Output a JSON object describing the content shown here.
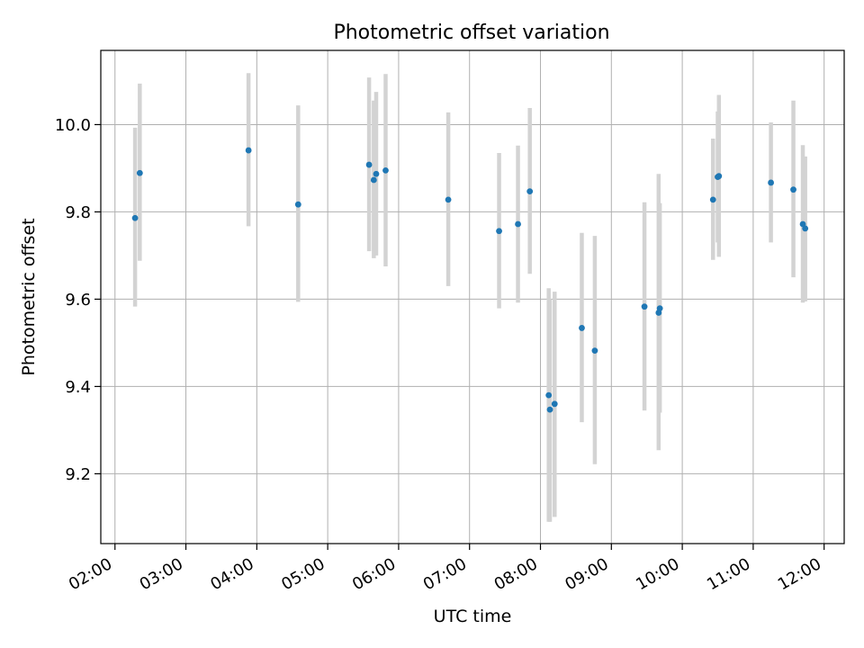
{
  "chart_data": {
    "type": "scatter",
    "title": "Photometric offset variation",
    "xlabel": "UTC time",
    "ylabel": "Photometric offset",
    "x_axis_type": "time",
    "xlim": [
      "01:48",
      "12:17"
    ],
    "ylim": [
      9.04,
      10.17
    ],
    "xticks": [
      "02:00",
      "03:00",
      "04:00",
      "05:00",
      "06:00",
      "07:00",
      "08:00",
      "09:00",
      "10:00",
      "11:00",
      "12:00"
    ],
    "yticks": [
      9.2,
      9.4,
      9.6,
      9.8,
      10.0
    ],
    "ytick_labels": [
      "9.2",
      "9.4",
      "9.6",
      "9.8",
      "10.0"
    ],
    "grid": true,
    "point_color": "#1f77b4",
    "errorbar_color": "#d3d3d3",
    "points": [
      {
        "x": "02:17",
        "y": 9.786,
        "yerr": [
          9.583,
          9.993
        ]
      },
      {
        "x": "02:21",
        "y": 9.889,
        "yerr": [
          9.688,
          10.094
        ]
      },
      {
        "x": "03:53",
        "y": 9.941,
        "yerr": [
          9.767,
          10.118
        ]
      },
      {
        "x": "04:35",
        "y": 9.817,
        "yerr": [
          9.594,
          10.044
        ]
      },
      {
        "x": "05:35",
        "y": 9.908,
        "yerr": [
          9.71,
          10.108
        ]
      },
      {
        "x": "05:39",
        "y": 9.873,
        "yerr": [
          9.694,
          10.055
        ]
      },
      {
        "x": "05:41",
        "y": 9.887,
        "yerr": [
          9.7,
          10.075
        ]
      },
      {
        "x": "05:49",
        "y": 9.895,
        "yerr": [
          9.675,
          10.116
        ]
      },
      {
        "x": "06:42",
        "y": 9.828,
        "yerr": [
          9.63,
          10.028
        ]
      },
      {
        "x": "07:25",
        "y": 9.756,
        "yerr": [
          9.579,
          9.935
        ]
      },
      {
        "x": "07:41",
        "y": 9.772,
        "yerr": [
          9.592,
          9.952
        ]
      },
      {
        "x": "07:51",
        "y": 9.847,
        "yerr": [
          9.658,
          10.038
        ]
      },
      {
        "x": "08:07",
        "y": 9.38,
        "yerr": [
          9.09,
          9.625
        ]
      },
      {
        "x": "08:08",
        "y": 9.347,
        "yerr": [
          9.09,
          9.6
        ]
      },
      {
        "x": "08:12",
        "y": 9.36,
        "yerr": [
          9.101,
          9.617
        ]
      },
      {
        "x": "08:35",
        "y": 9.534,
        "yerr": [
          9.318,
          9.752
        ]
      },
      {
        "x": "08:46",
        "y": 9.482,
        "yerr": [
          9.222,
          9.745
        ]
      },
      {
        "x": "09:28",
        "y": 9.583,
        "yerr": [
          9.345,
          9.822
        ]
      },
      {
        "x": "09:40",
        "y": 9.569,
        "yerr": [
          9.254,
          9.887
        ]
      },
      {
        "x": "09:41",
        "y": 9.579,
        "yerr": [
          9.34,
          9.82
        ]
      },
      {
        "x": "10:26",
        "y": 9.828,
        "yerr": [
          9.69,
          9.968
        ]
      },
      {
        "x": "10:30",
        "y": 9.88,
        "yerr": [
          9.73,
          10.03
        ]
      },
      {
        "x": "10:31",
        "y": 9.882,
        "yerr": [
          9.697,
          10.068
        ]
      },
      {
        "x": "11:15",
        "y": 9.867,
        "yerr": [
          9.73,
          10.005
        ]
      },
      {
        "x": "11:34",
        "y": 9.851,
        "yerr": [
          9.65,
          10.055
        ]
      },
      {
        "x": "11:42",
        "y": 9.772,
        "yerr": [
          9.592,
          9.953
        ]
      },
      {
        "x": "11:44",
        "y": 9.762,
        "yerr": [
          9.595,
          9.927
        ]
      }
    ]
  }
}
